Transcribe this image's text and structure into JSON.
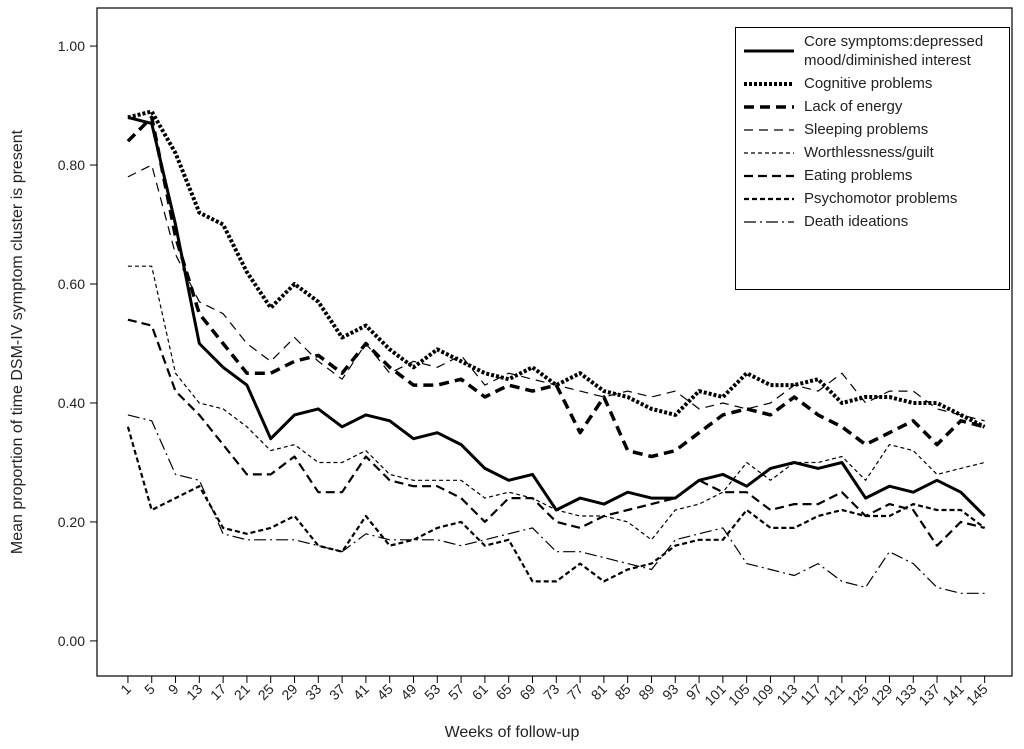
{
  "chart_data": {
    "type": "line",
    "x_label": "Weeks of follow-up",
    "y_label": "Mean proportion of time DSM-IV symptom cluster is present",
    "x": [
      1,
      5,
      9,
      13,
      17,
      21,
      25,
      29,
      33,
      37,
      41,
      45,
      49,
      53,
      57,
      61,
      65,
      69,
      73,
      77,
      81,
      85,
      89,
      93,
      97,
      101,
      105,
      109,
      113,
      117,
      121,
      125,
      129,
      133,
      137,
      141,
      145
    ],
    "xlim": [
      -4.2,
      149.6
    ],
    "xticks": [
      1,
      5,
      9,
      13,
      17,
      21,
      25,
      29,
      33,
      37,
      41,
      45,
      49,
      53,
      57,
      61,
      65,
      69,
      73,
      77,
      81,
      85,
      89,
      93,
      97,
      101,
      105,
      109,
      113,
      117,
      121,
      125,
      129,
      133,
      137,
      141,
      145
    ],
    "ylim": [
      -0.059,
      1.064
    ],
    "yticks": [
      {
        "value": 0,
        "label": "0.00"
      },
      {
        "value": 0.2,
        "label": "0.20"
      },
      {
        "value": 0.4,
        "label": "0.40"
      },
      {
        "value": 0.6,
        "label": "0.60"
      },
      {
        "value": 0.8,
        "label": "0.80"
      },
      {
        "value": 1,
        "label": "1.00"
      }
    ],
    "series": [
      {
        "name": "Core symptoms:depressed mood/diminished interest",
        "color": "#000",
        "width": 3,
        "dash": "none",
        "values": [
          0.88,
          0.87,
          0.7,
          0.5,
          0.46,
          0.43,
          0.34,
          0.38,
          0.39,
          0.36,
          0.38,
          0.37,
          0.34,
          0.35,
          0.33,
          0.29,
          0.27,
          0.28,
          0.22,
          0.24,
          0.23,
          0.25,
          0.24,
          0.24,
          0.27,
          0.28,
          0.26,
          0.29,
          0.3,
          0.29,
          0.3,
          0.24,
          0.26,
          0.25,
          0.27,
          0.25,
          0.21
        ]
      },
      {
        "name": "Cognitive problems",
        "color": "#000",
        "width": 4,
        "dash": "3 2",
        "values": [
          0.88,
          0.89,
          0.82,
          0.72,
          0.7,
          0.62,
          0.56,
          0.6,
          0.57,
          0.51,
          0.53,
          0.49,
          0.46,
          0.49,
          0.47,
          0.45,
          0.44,
          0.46,
          0.43,
          0.45,
          0.42,
          0.41,
          0.39,
          0.38,
          0.42,
          0.41,
          0.45,
          0.43,
          0.43,
          0.44,
          0.4,
          0.41,
          0.41,
          0.4,
          0.4,
          0.38,
          0.36
        ]
      },
      {
        "name": "Lack of energy",
        "color": "#000",
        "width": 3.5,
        "dash": "10 6",
        "values": [
          0.84,
          0.88,
          0.68,
          0.55,
          0.5,
          0.45,
          0.45,
          0.47,
          0.48,
          0.45,
          0.5,
          0.46,
          0.43,
          0.43,
          0.44,
          0.41,
          0.43,
          0.42,
          0.43,
          0.35,
          0.41,
          0.32,
          0.31,
          0.32,
          0.35,
          0.38,
          0.39,
          0.38,
          0.41,
          0.38,
          0.36,
          0.33,
          0.35,
          0.37,
          0.33,
          0.37,
          0.36
        ]
      },
      {
        "name": "Sleeping problems",
        "color": "#000",
        "width": 1.2,
        "dash": "9 6",
        "values": [
          0.78,
          0.8,
          0.65,
          0.57,
          0.55,
          0.5,
          0.47,
          0.51,
          0.47,
          0.44,
          0.5,
          0.45,
          0.47,
          0.46,
          0.48,
          0.43,
          0.45,
          0.44,
          0.43,
          0.42,
          0.41,
          0.42,
          0.41,
          0.42,
          0.39,
          0.4,
          0.39,
          0.4,
          0.43,
          0.42,
          0.45,
          0.4,
          0.42,
          0.42,
          0.39,
          0.38,
          0.37
        ]
      },
      {
        "name": "Worthlessness/guilt",
        "color": "#000",
        "width": 1.2,
        "dash": "4 3",
        "values": [
          0.63,
          0.63,
          0.45,
          0.4,
          0.39,
          0.36,
          0.32,
          0.33,
          0.3,
          0.3,
          0.32,
          0.28,
          0.27,
          0.27,
          0.27,
          0.24,
          0.25,
          0.24,
          0.22,
          0.21,
          0.21,
          0.2,
          0.17,
          0.22,
          0.23,
          0.25,
          0.3,
          0.27,
          0.3,
          0.3,
          0.31,
          0.27,
          0.33,
          0.32,
          0.28,
          0.29,
          0.3
        ]
      },
      {
        "name": "Eating problems",
        "color": "#000",
        "width": 2.2,
        "dash": "9 5",
        "values": [
          0.54,
          0.53,
          0.42,
          0.38,
          0.33,
          0.28,
          0.28,
          0.31,
          0.25,
          0.25,
          0.31,
          0.27,
          0.26,
          0.26,
          0.24,
          0.2,
          0.24,
          0.24,
          0.2,
          0.19,
          0.21,
          0.22,
          0.23,
          0.24,
          0.27,
          0.25,
          0.25,
          0.22,
          0.23,
          0.23,
          0.25,
          0.21,
          0.23,
          0.22,
          0.16,
          0.2,
          0.19
        ]
      },
      {
        "name": "Psychomotor problems",
        "color": "#000",
        "width": 2.2,
        "dash": "5 3",
        "values": [
          0.36,
          0.22,
          0.24,
          0.26,
          0.19,
          0.18,
          0.19,
          0.21,
          0.16,
          0.15,
          0.21,
          0.16,
          0.17,
          0.19,
          0.2,
          0.16,
          0.17,
          0.1,
          0.1,
          0.13,
          0.1,
          0.12,
          0.13,
          0.16,
          0.17,
          0.17,
          0.22,
          0.19,
          0.19,
          0.21,
          0.22,
          0.21,
          0.21,
          0.23,
          0.22,
          0.22,
          0.19
        ]
      },
      {
        "name": "Death ideations",
        "color": "#000",
        "width": 1.2,
        "dash": "12 4 2 4",
        "values": [
          0.38,
          0.37,
          0.28,
          0.27,
          0.18,
          0.17,
          0.17,
          0.17,
          0.16,
          0.15,
          0.18,
          0.17,
          0.17,
          0.17,
          0.16,
          0.17,
          0.18,
          0.19,
          0.15,
          0.15,
          0.14,
          0.13,
          0.12,
          0.17,
          0.18,
          0.19,
          0.13,
          0.12,
          0.11,
          0.13,
          0.1,
          0.09,
          0.15,
          0.13,
          0.09,
          0.08,
          0.08
        ]
      }
    ]
  }
}
